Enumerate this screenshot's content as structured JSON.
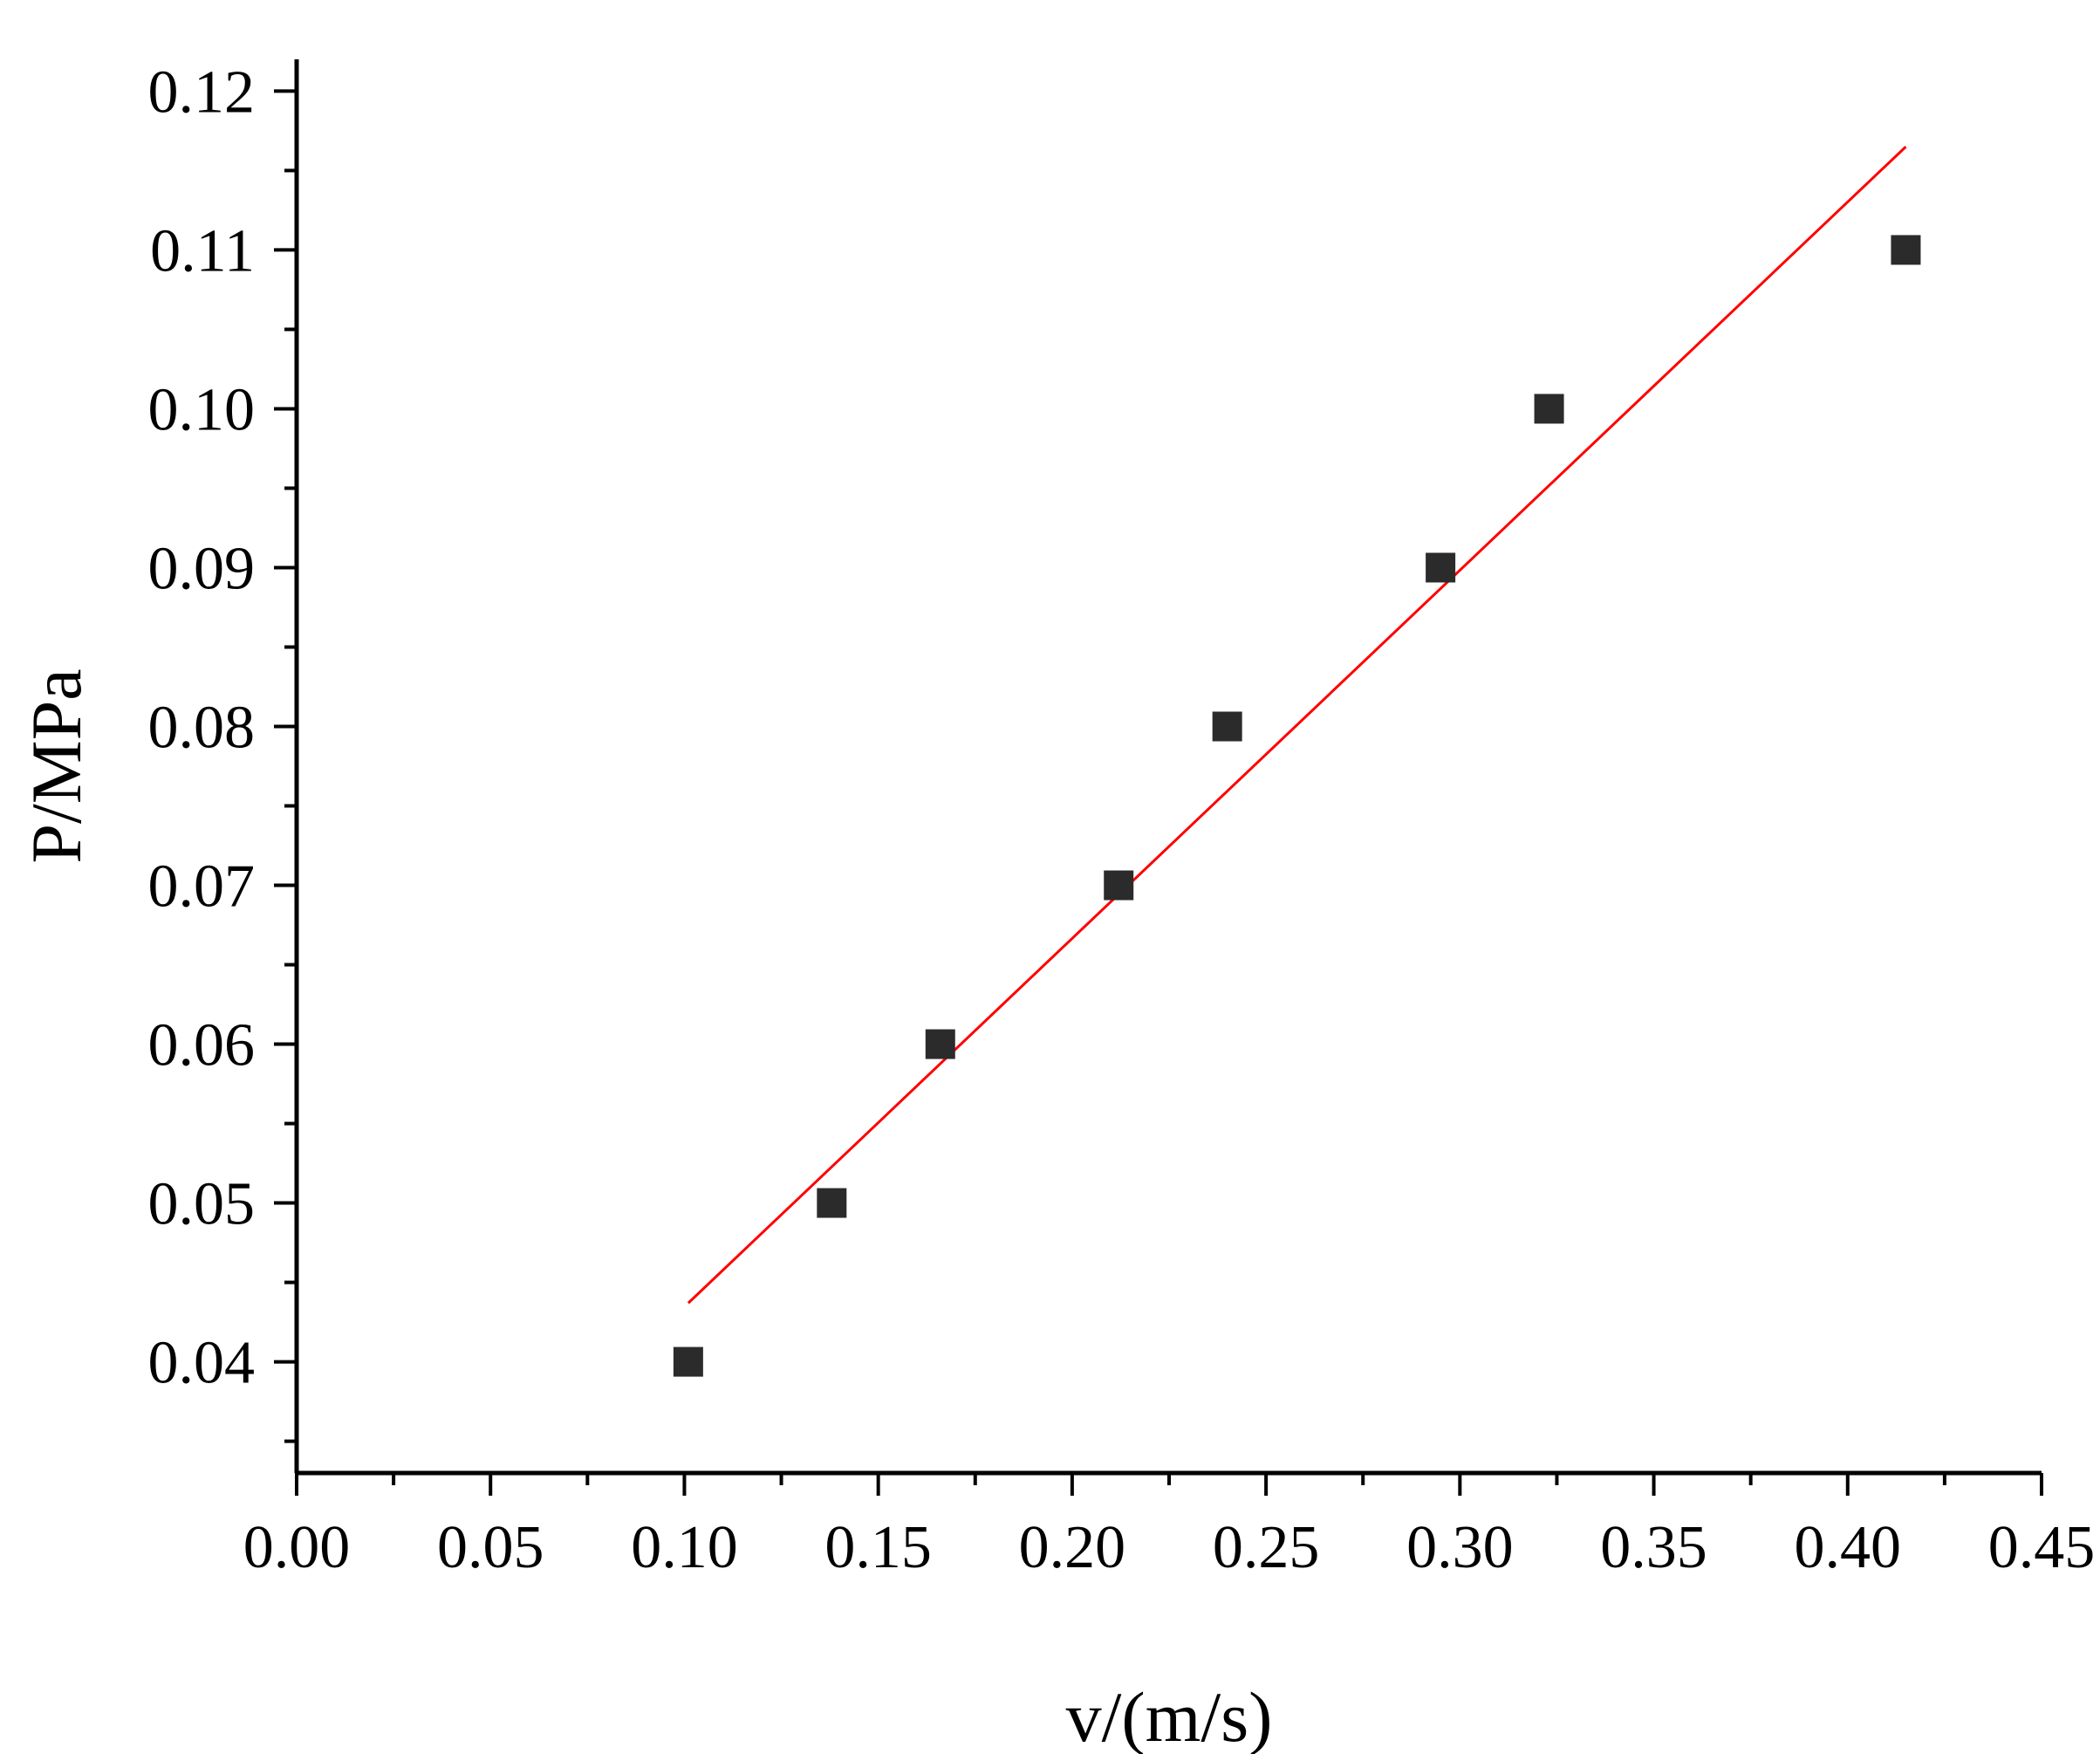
{
  "chart_data": {
    "type": "scatter",
    "xlabel": "v/(m/s)",
    "ylabel": "P/MPa",
    "xlim": [
      0.0,
      0.45
    ],
    "ylim": [
      0.033,
      0.122
    ],
    "xticks": [
      "0.00",
      "0.05",
      "0.10",
      "0.15",
      "0.20",
      "0.25",
      "0.30",
      "0.35",
      "0.40",
      "0.45"
    ],
    "yticks": [
      "0.04",
      "0.05",
      "0.06",
      "0.07",
      "0.08",
      "0.09",
      "0.10",
      "0.11",
      "0.12"
    ],
    "grid": false,
    "series": [
      {
        "kind": "points",
        "marker": "square",
        "color": "#2b2b2b",
        "x": [
          0.101,
          0.138,
          0.166,
          0.212,
          0.24,
          0.295,
          0.323,
          0.415
        ],
        "y": [
          0.04,
          0.05,
          0.06,
          0.07,
          0.08,
          0.09,
          0.1,
          0.11
        ]
      },
      {
        "kind": "fit-line",
        "color": "#ff0000",
        "x": [
          0.101,
          0.415
        ],
        "y": [
          0.0437,
          0.1165
        ]
      }
    ]
  }
}
